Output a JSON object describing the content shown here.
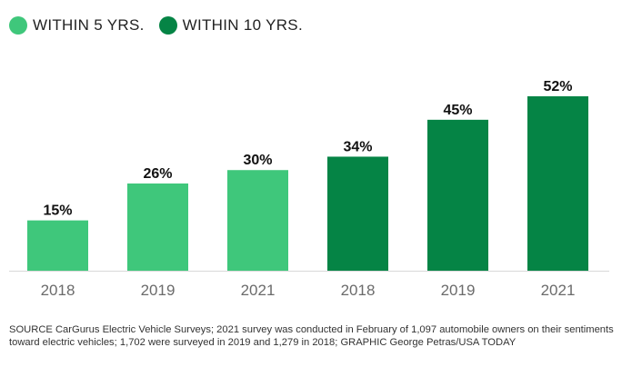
{
  "legend": [
    {
      "label": "WITHIN 5 YRS.",
      "color": "#3fc77b"
    },
    {
      "label": "WITHIN 10 YRS.",
      "color": "#058445"
    }
  ],
  "chart_data": {
    "type": "bar",
    "categories": [
      "2018",
      "2019",
      "2021",
      "2018",
      "2019",
      "2021"
    ],
    "series": [
      {
        "name": "WITHIN 5 YRS.",
        "values": [
          15,
          26,
          30,
          null,
          null,
          null
        ]
      },
      {
        "name": "WITHIN 10 YRS.",
        "values": [
          null,
          null,
          null,
          34,
          45,
          52
        ]
      }
    ],
    "values": [
      15,
      26,
      30,
      34,
      45,
      52
    ],
    "data_labels": [
      "15%",
      "26%",
      "30%",
      "34%",
      "45%",
      "52%"
    ],
    "ylim": [
      0,
      52
    ],
    "grid": false,
    "legend_position": "top-left"
  },
  "source": "SOURCE CarGurus Electric Vehicle Surveys; 2021 survey was conducted in February of 1,097 automobile owners on their sentiments toward electric vehicles; 1,702 were surveyed in 2019 and 1,279 in 2018; GRAPHIC George Petras/USA TODAY"
}
